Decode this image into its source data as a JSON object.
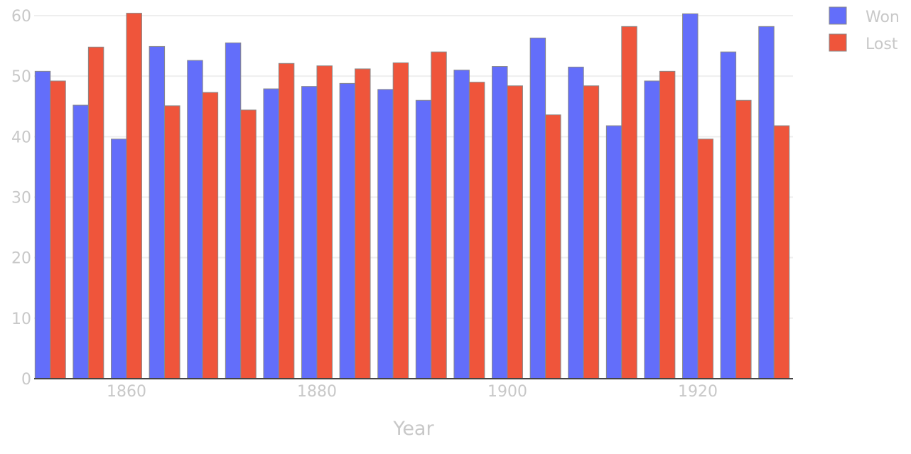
{
  "chart_data": {
    "type": "bar",
    "xlabel": "Year",
    "ylabel": "",
    "ylim": [
      0,
      60
    ],
    "xlim": [
      1850.3,
      1930
    ],
    "y_ticks": [
      0,
      10,
      20,
      30,
      40,
      50,
      60
    ],
    "x_ticks": [
      1860,
      1880,
      1900,
      1920
    ],
    "grid": true,
    "legend_position": "top-right",
    "x": [
      1852,
      1856,
      1860,
      1864,
      1868,
      1872,
      1876,
      1880,
      1884,
      1888,
      1892,
      1896,
      1900,
      1904,
      1908,
      1912,
      1916,
      1920,
      1924,
      1928
    ],
    "series": [
      {
        "name": "Won",
        "color": "#636efa",
        "values": [
          50.8,
          45.2,
          39.6,
          54.9,
          52.6,
          55.5,
          47.9,
          48.3,
          48.8,
          47.8,
          46.0,
          51.0,
          51.6,
          56.3,
          51.5,
          41.8,
          49.2,
          60.3,
          54.0,
          58.2
        ]
      },
      {
        "name": "Lost",
        "color": "#ef553b",
        "values": [
          49.2,
          54.8,
          60.4,
          45.1,
          47.3,
          44.4,
          52.1,
          51.7,
          51.2,
          52.2,
          54.0,
          49.0,
          48.4,
          43.6,
          48.4,
          58.2,
          50.8,
          39.6,
          46.0,
          41.8
        ]
      }
    ]
  }
}
